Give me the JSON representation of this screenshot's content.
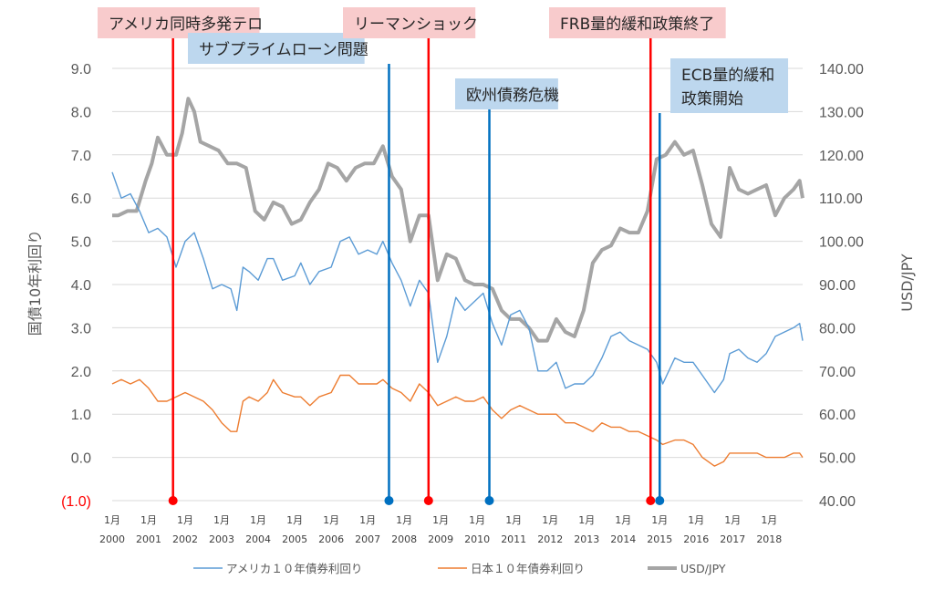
{
  "chart_data": {
    "type": "line",
    "x_start": "2000-01",
    "x_end": "2018-12",
    "x_tick_labels": [
      {
        "m": "1月",
        "y": "2000"
      },
      {
        "m": "1月",
        "y": "2001"
      },
      {
        "m": "1月",
        "y": "2002"
      },
      {
        "m": "1月",
        "y": "2003"
      },
      {
        "m": "1月",
        "y": "2004"
      },
      {
        "m": "1月",
        "y": "2005"
      },
      {
        "m": "1月",
        "y": "2006"
      },
      {
        "m": "1月",
        "y": "2007"
      },
      {
        "m": "1月",
        "y": "2008"
      },
      {
        "m": "1月",
        "y": "2009"
      },
      {
        "m": "1月",
        "y": "2010"
      },
      {
        "m": "1月",
        "y": "2011"
      },
      {
        "m": "1月",
        "y": "2012"
      },
      {
        "m": "1月",
        "y": "2013"
      },
      {
        "m": "1月",
        "y": "2014"
      },
      {
        "m": "1月",
        "y": "2015"
      },
      {
        "m": "1月",
        "y": "2016"
      },
      {
        "m": "1月",
        "y": "2017"
      },
      {
        "m": "1月",
        "y": "2018"
      }
    ],
    "ylabel_left": "国債10年利回り",
    "ylabel_right": "USD/JPY",
    "ylim_left": [
      -1.0,
      9.0
    ],
    "ylim_right": [
      40.0,
      140.0
    ],
    "left_ticks": [
      "(1.0)",
      "0.0",
      "1.0",
      "2.0",
      "3.0",
      "4.0",
      "5.0",
      "6.0",
      "7.0",
      "8.0",
      "9.0"
    ],
    "right_ticks": [
      "40.00",
      "50.00",
      "60.00",
      "70.00",
      "80.00",
      "90.00",
      "100.00",
      "110.00",
      "120.00",
      "130.00",
      "140.00"
    ],
    "series": [
      {
        "name": "アメリカ１０年債券利回り",
        "axis": "left",
        "color": "#5b9bd5",
        "points": [
          [
            "2000-01",
            6.6
          ],
          [
            "2000-04",
            6.0
          ],
          [
            "2000-07",
            6.1
          ],
          [
            "2000-10",
            5.7
          ],
          [
            "2001-01",
            5.2
          ],
          [
            "2001-04",
            5.3
          ],
          [
            "2001-07",
            5.1
          ],
          [
            "2001-10",
            4.4
          ],
          [
            "2002-01",
            5.0
          ],
          [
            "2002-04",
            5.2
          ],
          [
            "2002-07",
            4.6
          ],
          [
            "2002-10",
            3.9
          ],
          [
            "2003-01",
            4.0
          ],
          [
            "2003-04",
            3.9
          ],
          [
            "2003-06",
            3.4
          ],
          [
            "2003-08",
            4.4
          ],
          [
            "2003-10",
            4.3
          ],
          [
            "2004-01",
            4.1
          ],
          [
            "2004-04",
            4.6
          ],
          [
            "2004-06",
            4.6
          ],
          [
            "2004-09",
            4.1
          ],
          [
            "2005-01",
            4.2
          ],
          [
            "2005-03",
            4.5
          ],
          [
            "2005-06",
            4.0
          ],
          [
            "2005-09",
            4.3
          ],
          [
            "2006-01",
            4.4
          ],
          [
            "2006-04",
            5.0
          ],
          [
            "2006-07",
            5.1
          ],
          [
            "2006-10",
            4.7
          ],
          [
            "2007-01",
            4.8
          ],
          [
            "2007-04",
            4.7
          ],
          [
            "2007-06",
            5.0
          ],
          [
            "2007-09",
            4.5
          ],
          [
            "2007-12",
            4.1
          ],
          [
            "2008-03",
            3.5
          ],
          [
            "2008-06",
            4.1
          ],
          [
            "2008-09",
            3.8
          ],
          [
            "2008-12",
            2.2
          ],
          [
            "2009-03",
            2.8
          ],
          [
            "2009-06",
            3.7
          ],
          [
            "2009-09",
            3.4
          ],
          [
            "2009-12",
            3.6
          ],
          [
            "2010-03",
            3.8
          ],
          [
            "2010-06",
            3.1
          ],
          [
            "2010-09",
            2.6
          ],
          [
            "2010-12",
            3.3
          ],
          [
            "2011-03",
            3.4
          ],
          [
            "2011-06",
            3.0
          ],
          [
            "2011-09",
            2.0
          ],
          [
            "2011-12",
            2.0
          ],
          [
            "2012-03",
            2.2
          ],
          [
            "2012-06",
            1.6
          ],
          [
            "2012-09",
            1.7
          ],
          [
            "2012-12",
            1.7
          ],
          [
            "2013-03",
            1.9
          ],
          [
            "2013-06",
            2.3
          ],
          [
            "2013-09",
            2.8
          ],
          [
            "2013-12",
            2.9
          ],
          [
            "2014-03",
            2.7
          ],
          [
            "2014-06",
            2.6
          ],
          [
            "2014-09",
            2.5
          ],
          [
            "2014-12",
            2.2
          ],
          [
            "2015-02",
            1.7
          ],
          [
            "2015-06",
            2.3
          ],
          [
            "2015-09",
            2.2
          ],
          [
            "2015-12",
            2.2
          ],
          [
            "2016-03",
            1.9
          ],
          [
            "2016-07",
            1.5
          ],
          [
            "2016-10",
            1.8
          ],
          [
            "2016-12",
            2.4
          ],
          [
            "2017-03",
            2.5
          ],
          [
            "2017-06",
            2.3
          ],
          [
            "2017-09",
            2.2
          ],
          [
            "2017-12",
            2.4
          ],
          [
            "2018-03",
            2.8
          ],
          [
            "2018-06",
            2.9
          ],
          [
            "2018-09",
            3.0
          ],
          [
            "2018-11",
            3.1
          ],
          [
            "2018-12",
            2.7
          ]
        ]
      },
      {
        "name": "日本１０年債券利回り",
        "axis": "left",
        "color": "#ed7d31",
        "points": [
          [
            "2000-01",
            1.7
          ],
          [
            "2000-04",
            1.8
          ],
          [
            "2000-07",
            1.7
          ],
          [
            "2000-10",
            1.8
          ],
          [
            "2001-01",
            1.6
          ],
          [
            "2001-04",
            1.3
          ],
          [
            "2001-07",
            1.3
          ],
          [
            "2001-10",
            1.4
          ],
          [
            "2002-01",
            1.5
          ],
          [
            "2002-04",
            1.4
          ],
          [
            "2002-07",
            1.3
          ],
          [
            "2002-10",
            1.1
          ],
          [
            "2003-01",
            0.8
          ],
          [
            "2003-04",
            0.6
          ],
          [
            "2003-06",
            0.6
          ],
          [
            "2003-08",
            1.3
          ],
          [
            "2003-10",
            1.4
          ],
          [
            "2004-01",
            1.3
          ],
          [
            "2004-04",
            1.5
          ],
          [
            "2004-06",
            1.8
          ],
          [
            "2004-09",
            1.5
          ],
          [
            "2005-01",
            1.4
          ],
          [
            "2005-03",
            1.4
          ],
          [
            "2005-06",
            1.2
          ],
          [
            "2005-09",
            1.4
          ],
          [
            "2006-01",
            1.5
          ],
          [
            "2006-04",
            1.9
          ],
          [
            "2006-07",
            1.9
          ],
          [
            "2006-10",
            1.7
          ],
          [
            "2007-01",
            1.7
          ],
          [
            "2007-04",
            1.7
          ],
          [
            "2007-06",
            1.8
          ],
          [
            "2007-09",
            1.6
          ],
          [
            "2007-12",
            1.5
          ],
          [
            "2008-03",
            1.3
          ],
          [
            "2008-06",
            1.7
          ],
          [
            "2008-09",
            1.5
          ],
          [
            "2008-12",
            1.2
          ],
          [
            "2009-03",
            1.3
          ],
          [
            "2009-06",
            1.4
          ],
          [
            "2009-09",
            1.3
          ],
          [
            "2009-12",
            1.3
          ],
          [
            "2010-03",
            1.4
          ],
          [
            "2010-06",
            1.1
          ],
          [
            "2010-09",
            0.9
          ],
          [
            "2010-12",
            1.1
          ],
          [
            "2011-03",
            1.2
          ],
          [
            "2011-06",
            1.1
          ],
          [
            "2011-09",
            1.0
          ],
          [
            "2011-12",
            1.0
          ],
          [
            "2012-03",
            1.0
          ],
          [
            "2012-06",
            0.8
          ],
          [
            "2012-09",
            0.8
          ],
          [
            "2012-12",
            0.7
          ],
          [
            "2013-03",
            0.6
          ],
          [
            "2013-06",
            0.8
          ],
          [
            "2013-09",
            0.7
          ],
          [
            "2013-12",
            0.7
          ],
          [
            "2014-03",
            0.6
          ],
          [
            "2014-06",
            0.6
          ],
          [
            "2014-09",
            0.5
          ],
          [
            "2014-12",
            0.4
          ],
          [
            "2015-02",
            0.3
          ],
          [
            "2015-06",
            0.4
          ],
          [
            "2015-09",
            0.4
          ],
          [
            "2015-12",
            0.3
          ],
          [
            "2016-03",
            0.0
          ],
          [
            "2016-07",
            -0.2
          ],
          [
            "2016-10",
            -0.1
          ],
          [
            "2016-12",
            0.1
          ],
          [
            "2017-03",
            0.1
          ],
          [
            "2017-06",
            0.1
          ],
          [
            "2017-09",
            0.1
          ],
          [
            "2017-12",
            0.0
          ],
          [
            "2018-03",
            0.0
          ],
          [
            "2018-06",
            0.0
          ],
          [
            "2018-09",
            0.1
          ],
          [
            "2018-11",
            0.1
          ],
          [
            "2018-12",
            0.0
          ]
        ]
      },
      {
        "name": "USD/JPY",
        "axis": "right",
        "color": "#a5a5a5",
        "points": [
          [
            "2000-01",
            106
          ],
          [
            "2000-03",
            106
          ],
          [
            "2000-06",
            107
          ],
          [
            "2000-09",
            107
          ],
          [
            "2000-12",
            114
          ],
          [
            "2001-02",
            118
          ],
          [
            "2001-04",
            124
          ],
          [
            "2001-07",
            120
          ],
          [
            "2001-10",
            120
          ],
          [
            "2001-12",
            125
          ],
          [
            "2002-02",
            133
          ],
          [
            "2002-04",
            130
          ],
          [
            "2002-06",
            123
          ],
          [
            "2002-09",
            122
          ],
          [
            "2002-12",
            121
          ],
          [
            "2003-03",
            118
          ],
          [
            "2003-06",
            118
          ],
          [
            "2003-09",
            117
          ],
          [
            "2003-12",
            107
          ],
          [
            "2004-03",
            105
          ],
          [
            "2004-06",
            109
          ],
          [
            "2004-09",
            108
          ],
          [
            "2004-12",
            104
          ],
          [
            "2005-03",
            105
          ],
          [
            "2005-06",
            109
          ],
          [
            "2005-09",
            112
          ],
          [
            "2005-12",
            118
          ],
          [
            "2006-03",
            117
          ],
          [
            "2006-06",
            114
          ],
          [
            "2006-09",
            117
          ],
          [
            "2006-12",
            118
          ],
          [
            "2007-03",
            118
          ],
          [
            "2007-06",
            122
          ],
          [
            "2007-09",
            115
          ],
          [
            "2007-12",
            112
          ],
          [
            "2008-03",
            100
          ],
          [
            "2008-06",
            106
          ],
          [
            "2008-09",
            106
          ],
          [
            "2008-12",
            91
          ],
          [
            "2009-03",
            97
          ],
          [
            "2009-06",
            96
          ],
          [
            "2009-09",
            91
          ],
          [
            "2009-12",
            90
          ],
          [
            "2010-03",
            90
          ],
          [
            "2010-06",
            89
          ],
          [
            "2010-09",
            84
          ],
          [
            "2010-12",
            82
          ],
          [
            "2011-03",
            82
          ],
          [
            "2011-06",
            80
          ],
          [
            "2011-09",
            77
          ],
          [
            "2011-12",
            77
          ],
          [
            "2012-03",
            82
          ],
          [
            "2012-06",
            79
          ],
          [
            "2012-09",
            78
          ],
          [
            "2012-12",
            84
          ],
          [
            "2013-03",
            95
          ],
          [
            "2013-06",
            98
          ],
          [
            "2013-09",
            99
          ],
          [
            "2013-12",
            103
          ],
          [
            "2014-03",
            102
          ],
          [
            "2014-06",
            102
          ],
          [
            "2014-09",
            107
          ],
          [
            "2014-12",
            119
          ],
          [
            "2015-03",
            120
          ],
          [
            "2015-06",
            123
          ],
          [
            "2015-09",
            120
          ],
          [
            "2015-12",
            121
          ],
          [
            "2016-03",
            113
          ],
          [
            "2016-06",
            104
          ],
          [
            "2016-09",
            101
          ],
          [
            "2016-12",
            117
          ],
          [
            "2017-03",
            112
          ],
          [
            "2017-06",
            111
          ],
          [
            "2017-09",
            112
          ],
          [
            "2017-12",
            113
          ],
          [
            "2018-03",
            106
          ],
          [
            "2018-06",
            110
          ],
          [
            "2018-09",
            112
          ],
          [
            "2018-11",
            114
          ],
          [
            "2018-12",
            110
          ]
        ]
      }
    ],
    "events": [
      {
        "label": "アメリカ同時多発テロ",
        "date": "2001-09",
        "color": "#ff0000",
        "box_color": "#f8cbcc"
      },
      {
        "label": "サブプライムローン問題",
        "date": "2007-08",
        "color": "#0070c0",
        "box_color": "#bdd7ee"
      },
      {
        "label": "リーマンショック",
        "date": "2008-09",
        "color": "#ff0000",
        "box_color": "#f8cbcc"
      },
      {
        "label": "欧州債務危機",
        "date": "2010-05",
        "color": "#0070c0",
        "box_color": "#bdd7ee"
      },
      {
        "label": "FRB量的緩和政策終了",
        "date": "2014-10",
        "color": "#ff0000",
        "box_color": "#f8cbcc"
      },
      {
        "label": "ECB量的緩和政策開始",
        "date": "2015-01",
        "color": "#0070c0",
        "box_color": "#bdd7ee",
        "label_lines": [
          "ECB量的緩和",
          "政策開始"
        ]
      }
    ],
    "legend_position": "bottom"
  }
}
